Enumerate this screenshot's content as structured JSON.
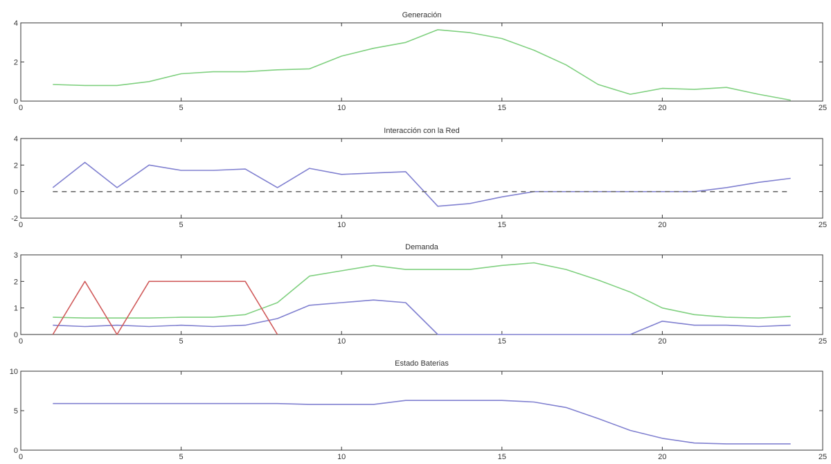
{
  "chart_data": [
    {
      "type": "line",
      "title": "Generación",
      "xlim": [
        0,
        25
      ],
      "ylim": [
        0,
        4
      ],
      "xticks": [
        0,
        5,
        10,
        15,
        20,
        25
      ],
      "yticks": [
        0,
        2,
        4
      ],
      "series": [
        {
          "color": "#7fd07f",
          "style": "solid",
          "x": [
            1,
            2,
            3,
            4,
            5,
            6,
            7,
            8,
            9,
            10,
            11,
            12,
            13,
            14,
            15,
            16,
            17,
            18,
            19,
            20,
            21,
            22,
            23,
            24
          ],
          "values": [
            0.85,
            0.8,
            0.8,
            1.0,
            1.4,
            1.5,
            1.5,
            1.6,
            1.65,
            2.3,
            2.7,
            3.0,
            3.65,
            3.5,
            3.2,
            2.6,
            1.85,
            0.85,
            0.35,
            0.65,
            0.6,
            0.7,
            0.35,
            0.05
          ]
        }
      ]
    },
    {
      "type": "line",
      "title": "Interacción con la Red",
      "xlim": [
        0,
        25
      ],
      "ylim": [
        -2,
        4
      ],
      "xticks": [
        0,
        5,
        10,
        15,
        20,
        25
      ],
      "yticks": [
        -2,
        0,
        2,
        4
      ],
      "series": [
        {
          "color": "#8080d0",
          "style": "solid",
          "x": [
            1,
            2,
            3,
            4,
            5,
            6,
            7,
            8,
            9,
            10,
            11,
            12,
            13,
            14,
            15,
            16,
            17,
            18,
            19,
            20,
            21,
            22,
            23,
            24
          ],
          "values": [
            0.3,
            2.2,
            0.3,
            2.0,
            1.6,
            1.6,
            1.7,
            0.3,
            1.75,
            1.3,
            1.4,
            1.5,
            -1.1,
            -0.9,
            -0.4,
            0.0,
            0.0,
            0.0,
            0.0,
            0.0,
            0.0,
            0.3,
            0.7,
            1.0
          ]
        },
        {
          "color": "#666666",
          "style": "dashed",
          "x": [
            1,
            24
          ],
          "values": [
            0,
            0
          ]
        }
      ]
    },
    {
      "type": "line",
      "title": "Demanda",
      "xlim": [
        0,
        25
      ],
      "ylim": [
        0,
        3
      ],
      "xticks": [
        0,
        5,
        10,
        15,
        20,
        25
      ],
      "yticks": [
        0,
        1,
        2,
        3
      ],
      "series": [
        {
          "color": "#7fd07f",
          "style": "solid",
          "x": [
            1,
            2,
            3,
            4,
            5,
            6,
            7,
            8,
            9,
            10,
            11,
            12,
            13,
            14,
            15,
            16,
            17,
            18,
            19,
            20,
            21,
            22,
            23,
            24
          ],
          "values": [
            0.65,
            0.62,
            0.62,
            0.62,
            0.65,
            0.65,
            0.75,
            1.2,
            2.2,
            2.4,
            2.6,
            2.45,
            2.45,
            2.45,
            2.6,
            2.7,
            2.45,
            2.05,
            1.6,
            1.0,
            0.75,
            0.65,
            0.62,
            0.68
          ]
        },
        {
          "color": "#8080d0",
          "style": "solid",
          "x": [
            1,
            2,
            3,
            4,
            5,
            6,
            7,
            8,
            9,
            10,
            11,
            12,
            13,
            14,
            15,
            16,
            17,
            18,
            19,
            20,
            21,
            22,
            23,
            24
          ],
          "values": [
            0.35,
            0.3,
            0.35,
            0.3,
            0.35,
            0.3,
            0.35,
            0.6,
            1.1,
            1.2,
            1.3,
            1.2,
            0,
            0,
            0,
            0,
            0,
            0,
            0,
            0.5,
            0.35,
            0.35,
            0.3,
            0.35
          ]
        },
        {
          "color": "#d05a5a",
          "style": "solid",
          "x": [
            1,
            2,
            3,
            4,
            5,
            6,
            7,
            8
          ],
          "values": [
            0,
            2,
            0,
            2,
            2,
            2,
            2,
            0
          ]
        }
      ]
    },
    {
      "type": "line",
      "title": "Estado Baterias",
      "xlim": [
        0,
        25
      ],
      "ylim": [
        0,
        10
      ],
      "xticks": [
        0,
        5,
        10,
        15,
        20,
        25
      ],
      "yticks": [
        0,
        5,
        10
      ],
      "series": [
        {
          "color": "#8080d0",
          "style": "solid",
          "x": [
            1,
            2,
            3,
            4,
            5,
            6,
            7,
            8,
            9,
            10,
            11,
            12,
            13,
            14,
            15,
            16,
            17,
            18,
            19,
            20,
            21,
            22,
            23,
            24
          ],
          "values": [
            5.9,
            5.9,
            5.9,
            5.9,
            5.9,
            5.9,
            5.9,
            5.9,
            5.8,
            5.8,
            5.8,
            6.3,
            6.3,
            6.3,
            6.3,
            6.1,
            5.4,
            4.0,
            2.5,
            1.5,
            0.9,
            0.8,
            0.8,
            0.8
          ]
        }
      ]
    }
  ]
}
